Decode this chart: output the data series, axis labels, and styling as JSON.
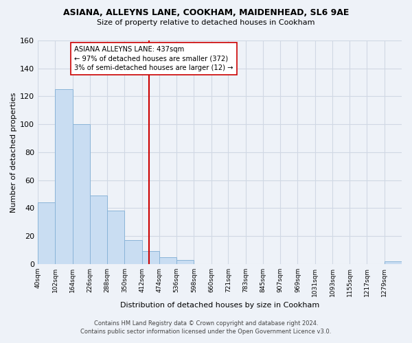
{
  "title1": "ASIANA, ALLEYNS LANE, COOKHAM, MAIDENHEAD, SL6 9AE",
  "title2": "Size of property relative to detached houses in Cookham",
  "xlabel": "Distribution of detached houses by size in Cookham",
  "ylabel": "Number of detached properties",
  "bar_values": [
    44,
    125,
    100,
    49,
    38,
    17,
    9,
    5,
    3,
    0,
    0,
    0,
    0,
    0,
    0,
    0,
    0,
    0,
    0,
    0,
    2
  ],
  "bin_labels": [
    "40sqm",
    "102sqm",
    "164sqm",
    "226sqm",
    "288sqm",
    "350sqm",
    "412sqm",
    "474sqm",
    "536sqm",
    "598sqm",
    "660sqm",
    "721sqm",
    "783sqm",
    "845sqm",
    "907sqm",
    "969sqm",
    "1031sqm",
    "1093sqm",
    "1155sqm",
    "1217sqm",
    "1279sqm"
  ],
  "bin_edges": [
    40,
    102,
    164,
    226,
    288,
    350,
    412,
    474,
    536,
    598,
    660,
    721,
    783,
    845,
    907,
    969,
    1031,
    1093,
    1155,
    1217,
    1279
  ],
  "bar_color": "#c9ddf2",
  "bar_edge_color": "#8ab4d8",
  "vline_x": 437,
  "vline_color": "#cc0000",
  "annotation_text": "ASIANA ALLEYNS LANE: 437sqm\n← 97% of detached houses are smaller (372)\n3% of semi-detached houses are larger (12) →",
  "annotation_box_color": "#ffffff",
  "annotation_box_edge": "#cc0000",
  "ylim": [
    0,
    160
  ],
  "yticks": [
    0,
    20,
    40,
    60,
    80,
    100,
    120,
    140,
    160
  ],
  "footer1": "Contains HM Land Registry data © Crown copyright and database right 2024.",
  "footer2": "Contains public sector information licensed under the Open Government Licence v3.0.",
  "bg_color": "#eef2f8",
  "plot_bg_color": "#eef2f8",
  "grid_color": "#d0d8e4"
}
